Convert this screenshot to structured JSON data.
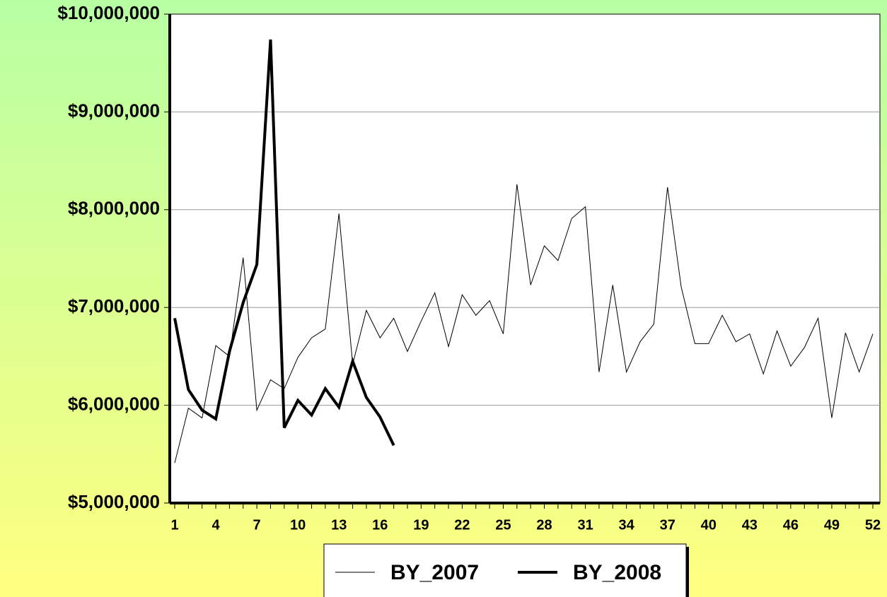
{
  "chart_data": {
    "type": "line",
    "categories": [
      1,
      null,
      null,
      4,
      null,
      null,
      7,
      null,
      null,
      10,
      null,
      null,
      13,
      null,
      null,
      16,
      null,
      null,
      19,
      null,
      null,
      22,
      null,
      null,
      25,
      null,
      null,
      28,
      null,
      null,
      31,
      null,
      null,
      34,
      null,
      null,
      37,
      null,
      null,
      40,
      null,
      null,
      43,
      null,
      null,
      46,
      null,
      null,
      49,
      null,
      null,
      52
    ],
    "series": [
      {
        "name": "BY_2007",
        "color": "#000000",
        "width": 1,
        "values": [
          5410000,
          5970000,
          5870000,
          6610000,
          6500000,
          7510000,
          5950000,
          6260000,
          6170000,
          6490000,
          6690000,
          6780000,
          7960000,
          6420000,
          6970000,
          6690000,
          6890000,
          6550000,
          6860000,
          7150000,
          6600000,
          7130000,
          6920000,
          7070000,
          6730000,
          8260000,
          7230000,
          7630000,
          7480000,
          7910000,
          8030000,
          6340000,
          7230000,
          6340000,
          6650000,
          6830000,
          8230000,
          7210000,
          6630000,
          6630000,
          6920000,
          6650000,
          6730000,
          6320000,
          6760000,
          6400000,
          6590000,
          6890000,
          5870000,
          6740000,
          6340000,
          6730000
        ]
      },
      {
        "name": "BY_2008",
        "color": "#000000",
        "width": 4,
        "values": [
          6890000,
          6160000,
          5950000,
          5860000,
          6550000,
          7050000,
          7440000,
          9740000,
          5770000,
          6050000,
          5900000,
          6170000,
          5980000,
          6450000,
          6080000,
          5880000,
          5590000,
          null,
          null,
          null,
          null,
          null,
          null,
          null,
          null,
          null,
          null,
          null,
          null,
          null,
          null,
          null,
          null,
          null,
          null,
          null,
          null,
          null,
          null,
          null,
          null,
          null,
          null,
          null,
          null,
          null,
          null,
          null,
          null,
          null,
          null,
          null
        ]
      }
    ],
    "ylim": [
      5000000,
      10000000
    ],
    "yticks": [
      {
        "value": 5000000,
        "label": "$5,000,000"
      },
      {
        "value": 6000000,
        "label": "$6,000,000"
      },
      {
        "value": 7000000,
        "label": "$7,000,000"
      },
      {
        "value": 8000000,
        "label": "$8,000,000"
      },
      {
        "value": 9000000,
        "label": "$9,000,000"
      },
      {
        "value": 10000000,
        "label": "$10,000,000"
      }
    ],
    "grid": true
  }
}
